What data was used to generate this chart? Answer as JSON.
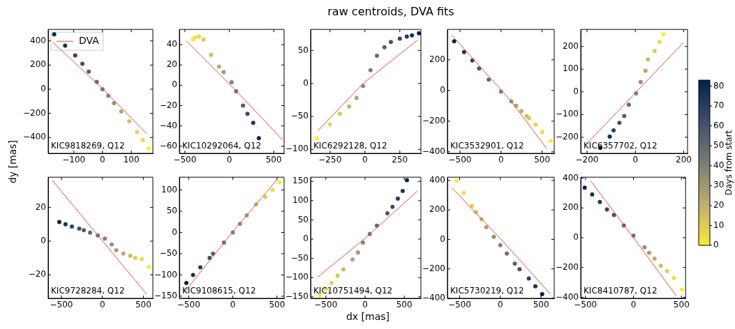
{
  "chart_data": [
    {
      "type": "scatter",
      "ylabel": "dy [mas]",
      "xlim": [
        -189,
        175
      ],
      "ylim": [
        -531,
        495
      ],
      "xticks": [
        -100,
        0,
        100
      ],
      "yticks": [
        -400,
        -200,
        0,
        200,
        400
      ],
      "annotations": [
        "KIC9818269, Q12"
      ],
      "legend": "top left",
      "series": [
        {
          "type": "scatter",
          "marker": "circle",
          "x": [
            160,
            140,
            120,
            93,
            65,
            40,
            20,
            0,
            -20,
            -48,
            -70,
            -95,
            -130,
            -168
          ],
          "values": [
            -490,
            -420,
            -355,
            -265,
            -185,
            -115,
            -55,
            0,
            60,
            145,
            210,
            280,
            360,
            455
          ],
          "colors": [
            "#fee838",
            "#f1dd43",
            "#e5d24d",
            "#d1c25d",
            "#b2a770",
            "#999374",
            "#878476",
            "#757576",
            "#646873",
            "#535b6f",
            "#424e6b",
            "#2f4164",
            "#163258",
            "#00224e"
          ]
        },
        {
          "type": "line",
          "marker": "none",
          "name": "DVA",
          "color": "#e34a4a",
          "x": [
            -174,
            0,
            154
          ],
          "values": [
            391,
            5,
            -370
          ]
        }
      ]
    },
    {
      "type": "scatter",
      "xlim": [
        -562,
        617
      ],
      "ylim": [
        -67,
        55
      ],
      "xticks": [
        -500,
        0,
        500
      ],
      "yticks": [
        -60,
        -40,
        -20,
        0,
        20,
        40
      ],
      "annotations": [
        "KIC10292064, Q12"
      ],
      "series": [
        {
          "type": "scatter",
          "marker": "circle",
          "x": [
            -410,
            -385,
            -340,
            -290,
            -205,
            -115,
            -64,
            26,
            77,
            154,
            205,
            269,
            333
          ],
          "values": [
            45,
            47,
            48,
            45,
            30,
            18.5,
            13,
            3,
            -6,
            -20,
            -28,
            -37,
            -52
          ],
          "colors": [
            "#fee838",
            "#f4e040",
            "#ebd848",
            "#e1cf50",
            "#cebf60",
            "#b8ac70",
            "#9f9873",
            "#878476",
            "#6f7175",
            "#535b6f",
            "#3c4969",
            "#1c365b",
            "#00224e"
          ]
        },
        {
          "type": "line",
          "marker": "none",
          "color": "#e34a4a",
          "x": [
            -487,
            51,
            602
          ],
          "values": [
            44,
            -3,
            -54
          ]
        }
      ]
    },
    {
      "type": "scatter",
      "title": "raw centroids, DVA fits",
      "xlim": [
        -389,
        401
      ],
      "ylim": [
        -106,
        82
      ],
      "xticks": [
        -250,
        0,
        250
      ],
      "yticks": [
        -100,
        -50,
        0,
        50
      ],
      "annotations": [
        "KIC6292128, Q12"
      ],
      "series": [
        {
          "type": "scatter",
          "marker": "circle",
          "x": [
            -345,
            -250,
            -180,
            -113,
            -60,
            -13,
            40,
            86,
            140,
            186,
            250,
            300,
            337,
            387
          ],
          "values": [
            -83,
            -62,
            -46,
            -35,
            -22,
            -4,
            20,
            42,
            55,
            63,
            68,
            71,
            73,
            76
          ],
          "colors": [
            "#fee838",
            "#ebd848",
            "#d8c758",
            "#c5b768",
            "#aca271",
            "#938e75",
            "#7b7a78",
            "#6a6d74",
            "#565d70",
            "#47526c",
            "#354566",
            "#223a5e",
            "#133057",
            "#00224e"
          ]
        },
        {
          "type": "line",
          "marker": "none",
          "color": "#e34a4a",
          "x": [
            -338,
            -13,
            377
          ],
          "values": [
            -72,
            0,
            66
          ]
        }
      ]
    },
    {
      "type": "scatter",
      "xlim": [
        -653,
        648
      ],
      "ylim": [
        -410,
        398
      ],
      "xticks": [
        -500,
        0,
        500
      ],
      "yticks": [
        -400,
        -200,
        0,
        200
      ],
      "annotations": [
        "KIC3532901, Q12"
      ],
      "series": [
        {
          "type": "scatter",
          "marker": "circle",
          "x": [
            603,
            500,
            420,
            341,
            313,
            250,
            183,
            125,
            0,
            -150,
            -267,
            -350,
            -450,
            -571
          ],
          "values": [
            -329,
            -270,
            -222,
            -181,
            -167,
            -135,
            -100,
            -71,
            -8,
            71,
            143,
            195,
            250,
            320
          ],
          "colors": [
            "#fee838",
            "#f1dd43",
            "#e5d24d",
            "#d8c758",
            "#cebf60",
            "#beb16d",
            "#aca271",
            "#999374",
            "#817f77",
            "#646873",
            "#4d566e",
            "#354566",
            "#1c365b",
            "#00224e"
          ]
        },
        {
          "type": "line",
          "marker": "none",
          "color": "#e34a4a",
          "x": [
            -600,
            125,
            560
          ],
          "values": [
            361,
            -71,
            -381
          ]
        }
      ]
    },
    {
      "type": "scatter",
      "clabel": "Days from start",
      "clim": [
        0,
        83
      ],
      "cticks": [
        0,
        10,
        20,
        30,
        40,
        50,
        60,
        70,
        80
      ],
      "xlim": [
        -226,
        216
      ],
      "ylim": [
        -271,
        275
      ],
      "xticks": [
        -200,
        0,
        200
      ],
      "yticks": [
        -200,
        -100,
        0,
        100,
        200
      ],
      "annotations": [
        "KIC6357702, Q12"
      ],
      "series": [
        {
          "type": "scatter",
          "marker": "circle",
          "x": [
            116,
            100,
            80,
            52,
            42,
            22,
            3,
            -27,
            -46,
            -66,
            -90,
            -106,
            -145
          ],
          "values": [
            253,
            220,
            180,
            143,
            93,
            43,
            -7,
            -57,
            -107,
            -137,
            -170,
            -197,
            -247
          ],
          "colors": [
            "#fee838",
            "#eeda45",
            "#decd53",
            "#cbbc62",
            "#b2a770",
            "#999374",
            "#817f77",
            "#6a6d74",
            "#535b6f",
            "#424e6b",
            "#293d62",
            "#163258",
            "#00224e"
          ]
        },
        {
          "type": "line",
          "marker": "none",
          "color": "#e34a4a",
          "x": [
            -204,
            0,
            200
          ],
          "values": [
            -232,
            -5,
            218
          ]
        }
      ]
    },
    {
      "type": "scatter",
      "xlim": [
        -662,
        616
      ],
      "ylim": [
        -34,
        38
      ],
      "xticks": [
        -500,
        0,
        500
      ],
      "yticks": [
        -20,
        0,
        20
      ],
      "annotations": [
        "KIC9728284, Q12"
      ],
      "series": [
        {
          "type": "scatter",
          "marker": "circle",
          "x": [
            567,
            482,
            400,
            340,
            255,
            170,
            113,
            30,
            -56,
            -150,
            -227,
            -283,
            -372,
            -450,
            -526
          ],
          "values": [
            -15.4,
            -10.7,
            -10,
            -8.7,
            -7.4,
            -5.4,
            -2,
            1.5,
            3.4,
            5,
            6.5,
            7.4,
            8.7,
            10,
            11.4
          ],
          "colors": [
            "#fee838",
            "#eeda45",
            "#decd53",
            "#cebf60",
            "#b8ac70",
            "#a99f72",
            "#999374",
            "#878476",
            "#757576",
            "#646873",
            "#535b6f",
            "#424e6b",
            "#2f4164",
            "#19345a",
            "#00224e"
          ]
        },
        {
          "type": "line",
          "marker": "none",
          "color": "#e34a4a",
          "x": [
            -611,
            539
          ],
          "values": [
            36.1,
            -31.5
          ]
        }
      ]
    },
    {
      "type": "scatter",
      "xlim": [
        -605,
        580
      ],
      "ylim": [
        -155,
        130
      ],
      "xticks": [
        -500,
        0,
        500
      ],
      "yticks": [
        -150,
        -100,
        -50,
        0,
        50,
        100
      ],
      "annotations": [
        "KIC9108615, Q12"
      ],
      "series": [
        {
          "type": "scatter",
          "marker": "circle",
          "x": [
            526,
            450,
            368,
            263,
            158,
            80,
            0,
            -100,
            -224,
            -263,
            -368,
            -450,
            -526
          ],
          "values": [
            118,
            100,
            84,
            66,
            40,
            20,
            0,
            -24,
            -50,
            -60,
            -82,
            -100,
            -119
          ],
          "colors": [
            "#fee838",
            "#eeda45",
            "#decd53",
            "#c5b768",
            "#a69d72",
            "#938e75",
            "#817f77",
            "#6a6d74",
            "#535b6f",
            "#424e6b",
            "#293d62",
            "#163258",
            "#00224e"
          ]
        },
        {
          "type": "line",
          "marker": "none",
          "color": "#e34a4a",
          "x": [
            -553,
            0,
            500
          ],
          "values": [
            -142,
            2,
            124
          ]
        }
      ]
    },
    {
      "type": "scatter",
      "xlabel": "dx [mas]",
      "xlim": [
        -694,
        712
      ],
      "ylim": [
        -154,
        161
      ],
      "xticks": [
        -500,
        0,
        500
      ],
      "yticks": [
        -150,
        -100,
        -50,
        0,
        50,
        100,
        150
      ],
      "annotations": [
        "KIC10751494, Q12"
      ],
      "series": [
        {
          "type": "scatter",
          "marker": "circle",
          "x": [
            -578,
            -500,
            -427,
            -350,
            -276,
            -160,
            -90,
            -27,
            60,
            151,
            285,
            350,
            418,
            480,
            534
          ],
          "values": [
            -146,
            -130,
            -114,
            -95,
            -79,
            -53,
            -35,
            -9,
            13,
            35,
            67,
            84,
            105,
            125,
            153
          ],
          "colors": [
            "#fee838",
            "#f1dd43",
            "#e5d24d",
            "#d8c758",
            "#cbbc62",
            "#b2a770",
            "#9f9873",
            "#878476",
            "#757576",
            "#646873",
            "#4d566e",
            "#3c4969",
            "#293d62",
            "#163258",
            "#00224e"
          ]
        },
        {
          "type": "line",
          "marker": "none",
          "color": "#e34a4a",
          "x": [
            -605,
            0,
            669
          ],
          "values": [
            -99,
            2,
            125
          ]
        }
      ]
    },
    {
      "type": "scatter",
      "xlim": [
        -650,
        662
      ],
      "ylim": [
        -400,
        422
      ],
      "xticks": [
        -500,
        0,
        500
      ],
      "yticks": [
        -400,
        -200,
        0,
        200,
        400
      ],
      "annotations": [
        "KIC5730219, Q12"
      ],
      "series": [
        {
          "type": "scatter",
          "marker": "circle",
          "x": [
            -538,
            -450,
            -348,
            -300,
            -231,
            -173,
            -80,
            0,
            80,
            178,
            236,
            350,
            430,
            514
          ],
          "values": [
            397,
            315,
            228,
            185,
            137,
            83,
            17,
            -39,
            -96,
            -165,
            -203,
            -265,
            -318,
            -372
          ],
          "colors": [
            "#fee838",
            "#f1dd43",
            "#e1cf50",
            "#d5c45a",
            "#c2b46a",
            "#aca271",
            "#938e75",
            "#817f77",
            "#6f7175",
            "#585f70",
            "#47526c",
            "#2f4164",
            "#163258",
            "#00224e"
          ]
        },
        {
          "type": "line",
          "marker": "none",
          "color": "#e34a4a",
          "x": [
            -597,
            0,
            617
          ],
          "values": [
            351,
            5,
            -372
          ]
        }
      ]
    },
    {
      "type": "scatter",
      "xlim": [
        -549,
        543
      ],
      "ylim": [
        -407,
        406
      ],
      "xticks": [
        -500,
        0,
        500
      ],
      "yticks": [
        -400,
        -200,
        0,
        200,
        400
      ],
      "annotations": [
        "KIC8410787, Q12"
      ],
      "series": [
        {
          "type": "scatter",
          "marker": "circle",
          "x": [
            505,
            420,
            350,
            285,
            220,
            163,
            115,
            0,
            -100,
            -203,
            -276,
            -350,
            -430,
            -508
          ],
          "values": [
            -349,
            -270,
            -225,
            -188,
            -140,
            -102,
            -64,
            14,
            82,
            152,
            190,
            240,
            290,
            336
          ],
          "colors": [
            "#fee838",
            "#eeda45",
            "#decd53",
            "#cebf60",
            "#b8ac70",
            "#a69d72",
            "#938e75",
            "#757576",
            "#5e6471",
            "#47526c",
            "#354566",
            "#223a5e",
            "#102d55",
            "#00224e"
          ]
        },
        {
          "type": "line",
          "marker": "none",
          "color": "#e34a4a",
          "x": [
            -447,
            0,
            444
          ],
          "values": [
            382,
            0,
            -388
          ]
        }
      ]
    }
  ]
}
